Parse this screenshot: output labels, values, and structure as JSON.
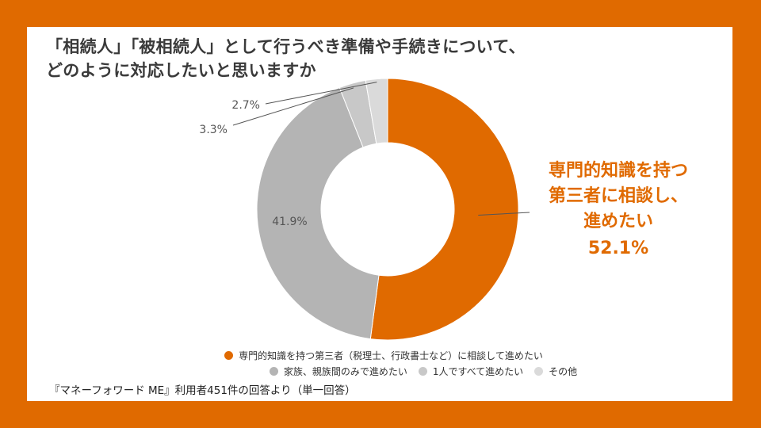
{
  "title": {
    "line1": "「相続人」「被相続人」として行うべき準備や手続きについて、",
    "line2": "どのように対応したいと思いますか"
  },
  "source": "『マネーフォワード ME』利用者451件の回答より（単一回答）",
  "callout": {
    "lines": [
      "専門的知識を持つ",
      "第三者に相談し、",
      "進めたい"
    ],
    "value": "52.1%"
  },
  "colors": {
    "frame": "#E06A00",
    "accent": "#E06A00"
  },
  "chart_data": {
    "type": "pie",
    "variant": "donut",
    "title": "「相続人」「被相続人」として行うべき準備や手続きについて、どのように対応したいと思いますか",
    "legend_position": "bottom",
    "series": [
      {
        "name": "専門的知識を持つ第三者（税理士、行政書士など）に相談して進めたい",
        "value": 52.1,
        "label": "52.1%",
        "color": "#E06A00"
      },
      {
        "name": "家族、親族間のみで進めたい",
        "value": 41.9,
        "label": "41.9%",
        "color": "#B4B4B4"
      },
      {
        "name": "1人ですべて進めたい",
        "value": 3.3,
        "label": "3.3%",
        "color": "#C8C8C8"
      },
      {
        "name": "その他",
        "value": 2.7,
        "label": "2.7%",
        "color": "#DADADA"
      }
    ]
  }
}
